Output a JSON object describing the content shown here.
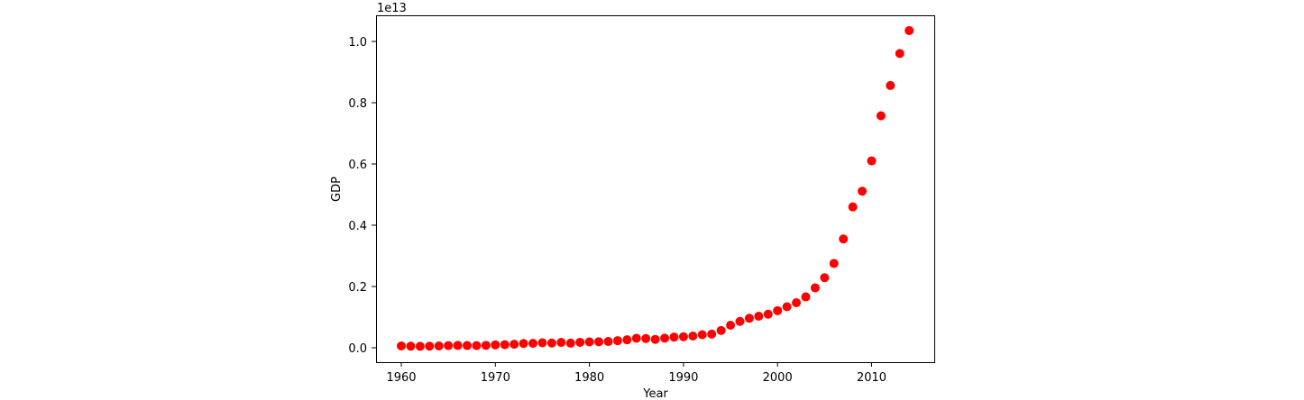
{
  "chart_data": {
    "type": "scatter",
    "title": "",
    "xlabel": "Year",
    "ylabel": "GDP",
    "y_offset_text": "1e13",
    "xlim": [
      1957.3,
      2016.7
    ],
    "ylim": [
      -0.047,
      1.085
    ],
    "xticks": [
      1960,
      1970,
      1980,
      1990,
      2000,
      2010
    ],
    "xtick_labels": [
      "1960",
      "1970",
      "1980",
      "1990",
      "2000",
      "2010"
    ],
    "yticks": [
      0.0,
      0.2,
      0.4,
      0.6,
      0.8,
      1.0
    ],
    "ytick_labels": [
      "0.0",
      "0.2",
      "0.4",
      "0.6",
      "0.8",
      "1.0"
    ],
    "grid": false,
    "legend": null,
    "marker_color": "#ff0000",
    "series": [
      {
        "name": "GDP",
        "x": [
          1960,
          1961,
          1962,
          1963,
          1964,
          1965,
          1966,
          1967,
          1968,
          1969,
          1970,
          1971,
          1972,
          1973,
          1974,
          1975,
          1976,
          1977,
          1978,
          1979,
          1980,
          1981,
          1982,
          1983,
          1984,
          1985,
          1986,
          1987,
          1988,
          1989,
          1990,
          1991,
          1992,
          1993,
          1994,
          1995,
          1996,
          1997,
          1998,
          1999,
          2000,
          2001,
          2002,
          2003,
          2004,
          2005,
          2006,
          2007,
          2008,
          2009,
          2010,
          2011,
          2012,
          2013,
          2014
        ],
        "values": [
          0.0059,
          0.005,
          0.0047,
          0.0051,
          0.0059,
          0.007,
          0.0076,
          0.0072,
          0.007,
          0.0079,
          0.0093,
          0.01,
          0.0114,
          0.0139,
          0.0144,
          0.0163,
          0.0154,
          0.0175,
          0.0149,
          0.0178,
          0.0191,
          0.0196,
          0.0205,
          0.023,
          0.026,
          0.0309,
          0.0301,
          0.0273,
          0.0312,
          0.0348,
          0.036,
          0.0383,
          0.0427,
          0.0445,
          0.0564,
          0.0735,
          0.0861,
          0.0962,
          0.1029,
          0.1094,
          0.1211,
          0.1339,
          0.1471,
          0.166,
          0.1955,
          0.2286,
          0.2752,
          0.3552,
          0.4598,
          0.511,
          0.6101,
          0.7573,
          0.8561,
          0.9607,
          1.0354
        ]
      }
    ]
  }
}
